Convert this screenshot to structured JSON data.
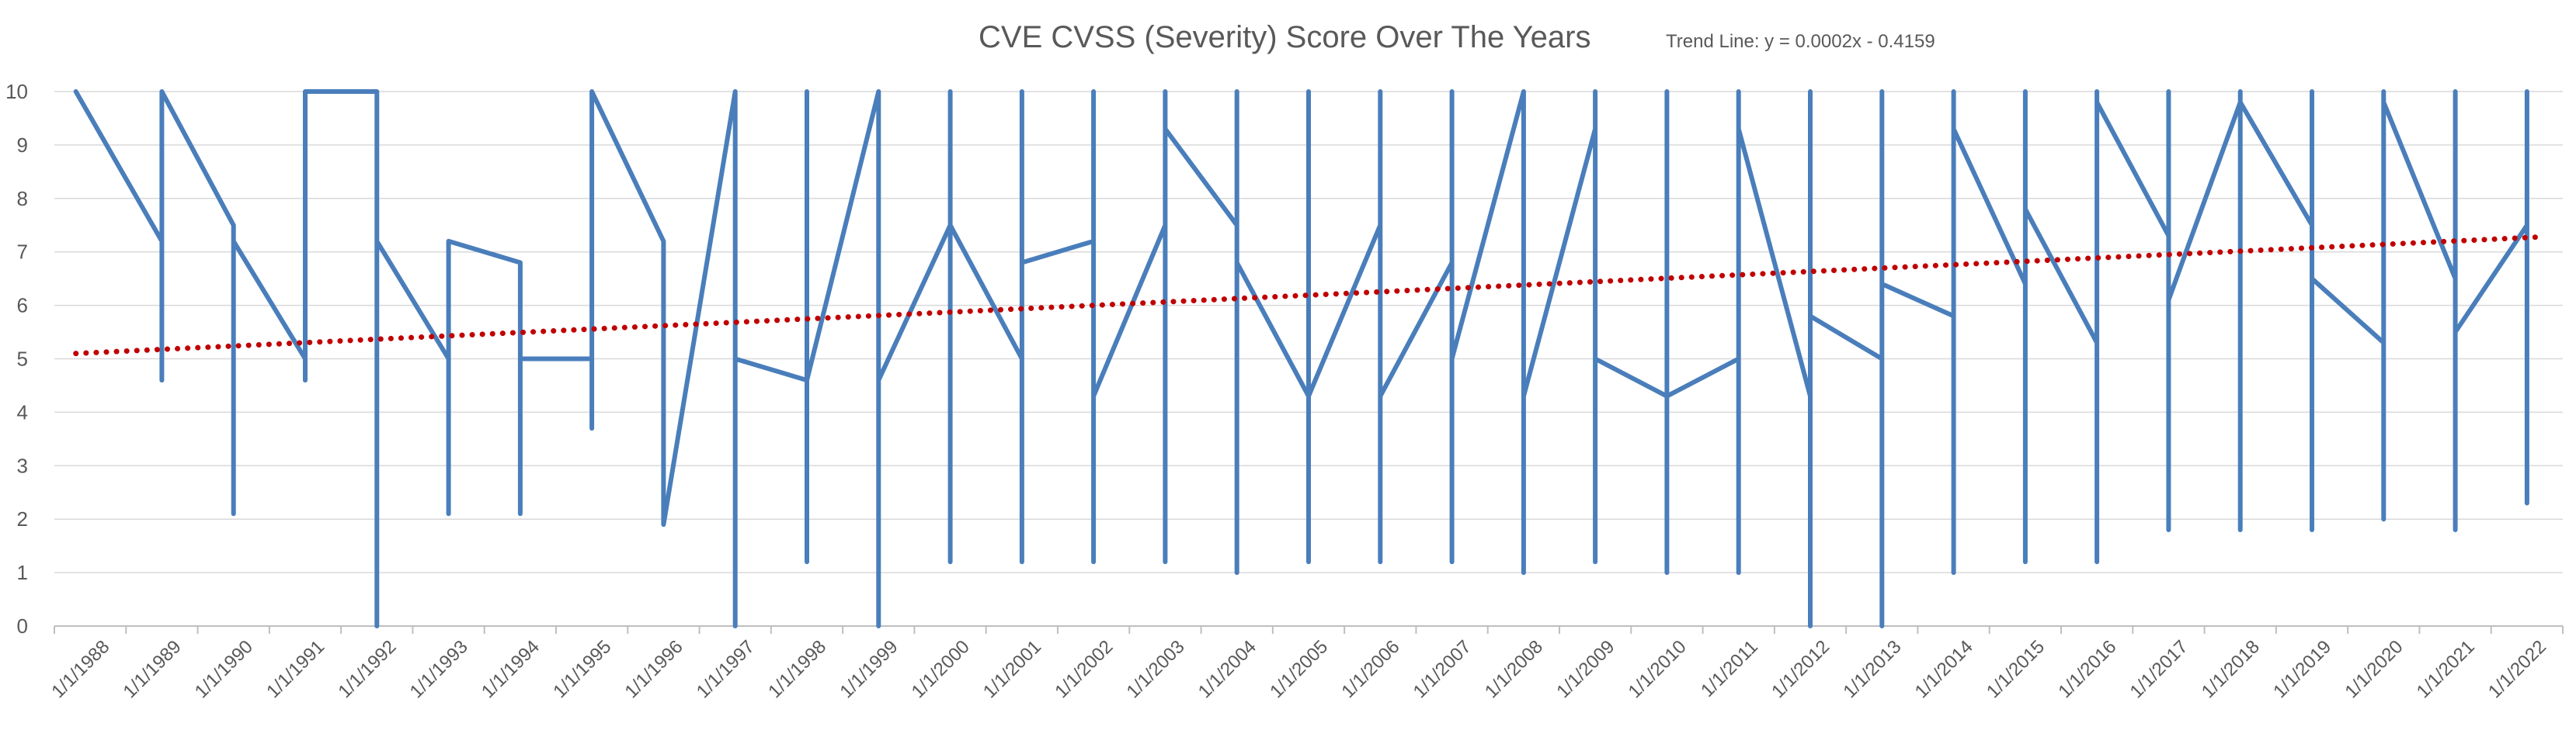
{
  "chart_data": {
    "type": "line",
    "title": "CVE CVSS  (Severity) Score Over The Years",
    "annotation": "Trend Line: y = 0.0002x - 0.4159",
    "xlabel": "",
    "ylabel": "",
    "ylim": [
      0,
      10
    ],
    "y_ticks": [
      "0",
      "1",
      "2",
      "3",
      "4",
      "5",
      "6",
      "7",
      "8",
      "9",
      "10"
    ],
    "categories": [
      "1/1/1988",
      "1/1/1989",
      "1/1/1990",
      "1/1/1991",
      "1/1/1992",
      "1/1/1993",
      "1/1/1994",
      "1/1/1995",
      "1/1/1996",
      "1/1/1997",
      "1/1/1998",
      "1/1/1999",
      "1/1/2000",
      "1/1/2001",
      "1/1/2002",
      "1/1/2003",
      "1/1/2004",
      "1/1/2005",
      "1/1/2006",
      "1/1/2007",
      "1/1/2008",
      "1/1/2009",
      "1/1/2010",
      "1/1/2011",
      "1/1/2012",
      "1/1/2013",
      "1/1/2014",
      "1/1/2015",
      "1/1/2016",
      "1/1/2017",
      "1/1/2018",
      "1/1/2019",
      "1/1/2020",
      "1/1/2021",
      "1/1/2022"
    ],
    "grid": true,
    "legend": "none",
    "colors": {
      "series": "#4a7ebb",
      "trend": "#c00000",
      "grid": "#d9d9d9",
      "axis": "#bfbfbf"
    },
    "series": [
      {
        "points": [
          [
            1987.8,
            10
          ],
          [
            1989.0,
            7.2
          ],
          [
            1989.0,
            4.6
          ],
          [
            1989.0,
            10
          ],
          [
            1990.0,
            7.5
          ],
          [
            1990.0,
            2.1
          ],
          [
            1990.0,
            7.2
          ],
          [
            1991.0,
            5.0
          ],
          [
            1991.0,
            4.6
          ],
          [
            1991.0,
            10
          ],
          [
            1992.0,
            10
          ],
          [
            1992.0,
            0
          ],
          [
            1992.0,
            7.2
          ],
          [
            1993.0,
            5.0
          ],
          [
            1993.0,
            2.1
          ],
          [
            1993.0,
            7.2
          ],
          [
            1994.0,
            6.8
          ],
          [
            1994.0,
            2.1
          ],
          [
            1994.0,
            5.0
          ],
          [
            1995.0,
            5.0
          ],
          [
            1995.0,
            3.7
          ],
          [
            1995.0,
            10
          ],
          [
            1996.0,
            7.2
          ],
          [
            1996.0,
            1.9
          ],
          [
            1997.0,
            10
          ],
          [
            1997.0,
            0
          ],
          [
            1997.0,
            5.0
          ],
          [
            1998.0,
            4.6
          ],
          [
            1998.0,
            1.2
          ],
          [
            1998.0,
            10
          ],
          [
            1998.0,
            4.6
          ],
          [
            1999.0,
            10
          ],
          [
            1999.0,
            0
          ],
          [
            1999.0,
            4.6
          ],
          [
            2000.0,
            7.5
          ],
          [
            2000.0,
            1.2
          ],
          [
            2000.0,
            10
          ],
          [
            2000.0,
            7.5
          ],
          [
            2001.0,
            5.0
          ],
          [
            2001.0,
            1.2
          ],
          [
            2001.0,
            10
          ],
          [
            2001.0,
            6.8
          ],
          [
            2002.0,
            7.2
          ],
          [
            2002.0,
            1.2
          ],
          [
            2002.0,
            10
          ],
          [
            2002.0,
            4.3
          ],
          [
            2003.0,
            7.5
          ],
          [
            2003.0,
            1.2
          ],
          [
            2003.0,
            10
          ],
          [
            2003.0,
            9.3
          ],
          [
            2004.0,
            7.5
          ],
          [
            2004.0,
            1.0
          ],
          [
            2004.0,
            10
          ],
          [
            2004.0,
            6.8
          ],
          [
            2005.0,
            4.3
          ],
          [
            2005.0,
            1.2
          ],
          [
            2005.0,
            10
          ],
          [
            2005.0,
            4.3
          ],
          [
            2006.0,
            7.5
          ],
          [
            2006.0,
            1.2
          ],
          [
            2006.0,
            10
          ],
          [
            2006.0,
            4.3
          ],
          [
            2007.0,
            6.8
          ],
          [
            2007.0,
            1.2
          ],
          [
            2007.0,
            10
          ],
          [
            2007.0,
            5.0
          ],
          [
            2008.0,
            10
          ],
          [
            2008.0,
            1.0
          ],
          [
            2008.0,
            10
          ],
          [
            2008.0,
            4.3
          ],
          [
            2009.0,
            9.3
          ],
          [
            2009.0,
            1.2
          ],
          [
            2009.0,
            10
          ],
          [
            2009.0,
            5.0
          ],
          [
            2010.0,
            4.3
          ],
          [
            2010.0,
            1.0
          ],
          [
            2010.0,
            10
          ],
          [
            2010.0,
            4.3
          ],
          [
            2011.0,
            5.0
          ],
          [
            2011.0,
            1.0
          ],
          [
            2011.0,
            10
          ],
          [
            2011.0,
            9.3
          ],
          [
            2012.0,
            4.3
          ],
          [
            2012.0,
            0
          ],
          [
            2012.0,
            10
          ],
          [
            2012.0,
            5.8
          ],
          [
            2013.0,
            5.0
          ],
          [
            2013.0,
            0
          ],
          [
            2013.0,
            10
          ],
          [
            2013.0,
            6.4
          ],
          [
            2014.0,
            5.8
          ],
          [
            2014.0,
            1.0
          ],
          [
            2014.0,
            10
          ],
          [
            2014.0,
            9.3
          ],
          [
            2015.0,
            6.4
          ],
          [
            2015.0,
            1.2
          ],
          [
            2015.0,
            10
          ],
          [
            2015.0,
            7.8
          ],
          [
            2016.0,
            5.3
          ],
          [
            2016.0,
            1.2
          ],
          [
            2016.0,
            10
          ],
          [
            2016.0,
            9.8
          ],
          [
            2017.0,
            7.3
          ],
          [
            2017.0,
            1.8
          ],
          [
            2017.0,
            10
          ],
          [
            2017.0,
            6.1
          ],
          [
            2018.0,
            9.8
          ],
          [
            2018.0,
            1.8
          ],
          [
            2018.0,
            10
          ],
          [
            2018.0,
            9.8
          ],
          [
            2019.0,
            7.5
          ],
          [
            2019.0,
            1.8
          ],
          [
            2019.0,
            10
          ],
          [
            2019.0,
            6.5
          ],
          [
            2020.0,
            5.3
          ],
          [
            2020.0,
            2.0
          ],
          [
            2020.0,
            10
          ],
          [
            2020.0,
            9.8
          ],
          [
            2021.0,
            6.5
          ],
          [
            2021.0,
            1.8
          ],
          [
            2021.0,
            10
          ],
          [
            2021.0,
            5.5
          ],
          [
            2022.0,
            7.5
          ],
          [
            2022.0,
            2.3
          ],
          [
            2022.0,
            10
          ]
        ]
      }
    ],
    "trend_line": {
      "style": "dotted",
      "start": [
        1987.8,
        5.1
      ],
      "end": [
        2022.2,
        7.28
      ]
    }
  }
}
